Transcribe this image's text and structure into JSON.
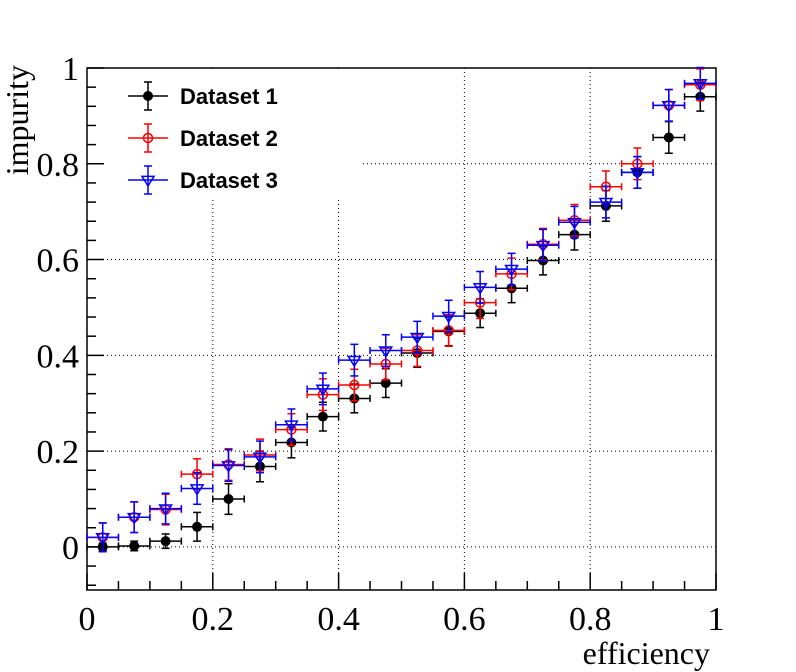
{
  "chart_data": {
    "type": "scatter",
    "xlabel": "efficiency",
    "ylabel": "impurity",
    "xlim": [
      0,
      1
    ],
    "ylim": [
      -0.09,
      1.0
    ],
    "grid": true,
    "legend_position": "top-left",
    "x_ticks": [
      "0",
      "0.2",
      "0.4",
      "0.6",
      "0.8",
      "1"
    ],
    "y_ticks": [
      "0",
      "0.2",
      "0.4",
      "0.6",
      "0.8",
      "1"
    ],
    "x_error": 0.025,
    "series": [
      {
        "name": "Dataset 1",
        "color": "#000000",
        "marker": "filled-circle",
        "x": [
          0.025,
          0.075,
          0.125,
          0.175,
          0.225,
          0.275,
          0.325,
          0.375,
          0.425,
          0.475,
          0.525,
          0.575,
          0.625,
          0.675,
          0.725,
          0.775,
          0.825,
          0.875,
          0.925,
          0.975
        ],
        "y": [
          0.0,
          0.002,
          0.012,
          0.042,
          0.1,
          0.168,
          0.218,
          0.272,
          0.31,
          0.342,
          0.405,
          0.45,
          0.488,
          0.54,
          0.598,
          0.652,
          0.712,
          0.782,
          0.855,
          0.94
        ],
        "y_err": [
          0.008,
          0.01,
          0.015,
          0.03,
          0.032,
          0.032,
          0.032,
          0.03,
          0.03,
          0.03,
          0.03,
          0.03,
          0.03,
          0.03,
          0.03,
          0.032,
          0.032,
          0.033,
          0.033,
          0.03
        ]
      },
      {
        "name": "Dataset 2",
        "color": "#ff0000",
        "marker": "open-circle",
        "x": [
          0.025,
          0.075,
          0.125,
          0.175,
          0.225,
          0.275,
          0.325,
          0.375,
          0.425,
          0.475,
          0.525,
          0.575,
          0.625,
          0.675,
          0.725,
          0.775,
          0.825,
          0.875,
          0.925,
          0.975
        ],
        "y": [
          0.02,
          0.062,
          0.078,
          0.152,
          0.172,
          0.192,
          0.245,
          0.318,
          0.338,
          0.382,
          0.41,
          0.452,
          0.51,
          0.57,
          0.632,
          0.682,
          0.752,
          0.8,
          0.922,
          0.965
        ],
        "y_err": [
          0.03,
          0.032,
          0.032,
          0.032,
          0.033,
          0.033,
          0.033,
          0.033,
          0.033,
          0.033,
          0.033,
          0.033,
          0.033,
          0.033,
          0.033,
          0.033,
          0.033,
          0.033,
          0.033,
          0.033
        ]
      },
      {
        "name": "Dataset 3",
        "color": "#0000ff",
        "marker": "open-triangle-down",
        "x": [
          0.025,
          0.075,
          0.125,
          0.175,
          0.225,
          0.275,
          0.325,
          0.375,
          0.425,
          0.475,
          0.525,
          0.575,
          0.625,
          0.675,
          0.725,
          0.775,
          0.825,
          0.875,
          0.925,
          0.975
        ],
        "y": [
          0.02,
          0.062,
          0.08,
          0.122,
          0.17,
          0.188,
          0.255,
          0.33,
          0.39,
          0.41,
          0.438,
          0.482,
          0.542,
          0.58,
          0.63,
          0.678,
          0.72,
          0.782,
          0.922,
          0.968
        ],
        "y_err": [
          0.03,
          0.032,
          0.032,
          0.033,
          0.033,
          0.033,
          0.033,
          0.033,
          0.033,
          0.033,
          0.033,
          0.033,
          0.033,
          0.033,
          0.033,
          0.033,
          0.033,
          0.033,
          0.033,
          0.033
        ]
      }
    ]
  }
}
